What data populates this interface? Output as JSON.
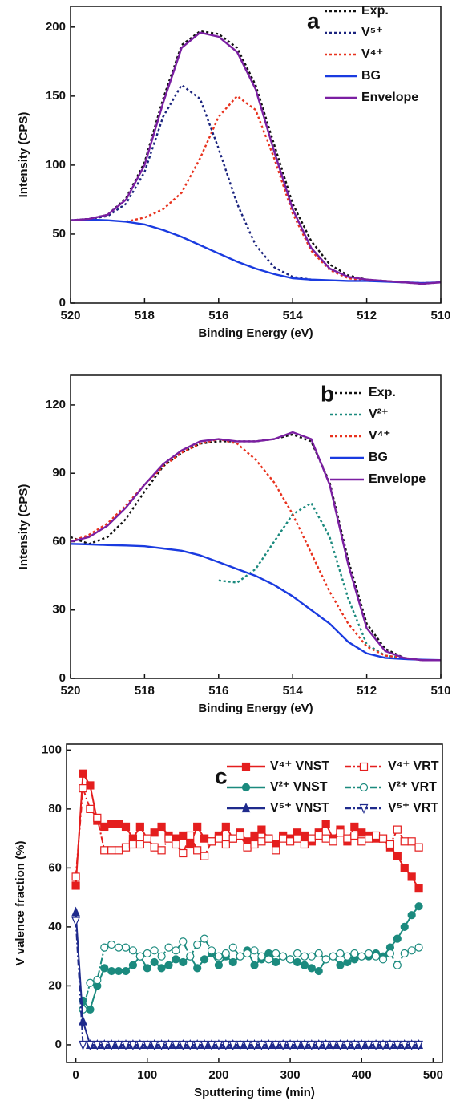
{
  "chart_data": [
    {
      "type": "line",
      "label": "a",
      "xlabel": "Binding Energy (eV)",
      "ylabel": "Intensity (CPS)",
      "x": [
        520,
        519.5,
        519,
        518.5,
        518,
        517.5,
        517,
        516.5,
        516,
        515.5,
        515,
        514.5,
        514,
        513.5,
        513,
        512.5,
        512,
        511.5,
        511,
        510.5,
        510
      ],
      "xlim": [
        520,
        510
      ],
      "xticks": [
        520,
        518,
        516,
        514,
        512,
        510
      ],
      "ylim": [
        0,
        215
      ],
      "yticks": [
        0,
        50,
        100,
        150,
        200
      ],
      "series": [
        {
          "name": "Exp.",
          "color": "#111111",
          "dash": "dot",
          "values": [
            60,
            61,
            64,
            76,
            102,
            148,
            187,
            197,
            195,
            185,
            158,
            115,
            72,
            45,
            28,
            20,
            17,
            16,
            15,
            14,
            15
          ]
        },
        {
          "name": "V⁵⁺",
          "color": "#1a237e",
          "dash": "dot",
          "values": [
            60,
            61,
            63,
            72,
            95,
            135,
            158,
            148,
            112,
            72,
            42,
            26,
            19,
            17,
            null,
            null,
            null,
            null,
            null,
            null,
            null
          ]
        },
        {
          "name": "V⁴⁺",
          "color": "#e8321e",
          "dash": "dot",
          "values": [
            null,
            null,
            null,
            59,
            62,
            68,
            80,
            105,
            135,
            150,
            140,
            105,
            65,
            38,
            24,
            18,
            16,
            16,
            15,
            14.5,
            15
          ]
        },
        {
          "name": "BG",
          "color": "#1a3be0",
          "dash": "solid",
          "values": [
            60,
            60.5,
            60,
            59,
            57,
            53,
            48,
            42,
            36,
            30,
            25,
            21,
            18,
            17,
            16.5,
            16,
            16,
            15.5,
            15,
            14.5,
            15
          ]
        },
        {
          "name": "Envelope",
          "color": "#7b1fa2",
          "dash": "solid",
          "values": [
            60,
            61,
            64,
            75,
            100,
            145,
            185,
            196,
            193,
            182,
            155,
            110,
            68,
            40,
            25,
            19,
            17,
            16,
            15,
            14,
            15
          ]
        }
      ]
    },
    {
      "type": "line",
      "label": "b",
      "xlabel": "Binding Energy (eV)",
      "ylabel": "Intensity (CPS)",
      "x": [
        520,
        519.5,
        519,
        518.5,
        518,
        517.5,
        517,
        516.5,
        516,
        515.5,
        515,
        514.5,
        514,
        513.5,
        513,
        512.5,
        512,
        511.5,
        511,
        510.5,
        510
      ],
      "xlim": [
        520,
        510
      ],
      "xticks": [
        520,
        518,
        516,
        514,
        512,
        510
      ],
      "ylim": [
        0,
        133
      ],
      "yticks": [
        0,
        30,
        60,
        90,
        120
      ],
      "series": [
        {
          "name": "Exp.",
          "color": "#111111",
          "dash": "dot",
          "values": [
            62,
            59,
            62,
            70,
            82,
            93,
            99,
            103,
            104,
            104,
            104,
            105,
            107,
            104,
            86,
            52,
            24,
            13,
            9,
            8,
            8
          ]
        },
        {
          "name": "V²⁺",
          "color": "#1b8a7e",
          "dash": "dot",
          "values": [
            null,
            null,
            null,
            null,
            null,
            null,
            null,
            null,
            43,
            42,
            48,
            60,
            72,
            77,
            62,
            35,
            15,
            10,
            9,
            8,
            8
          ]
        },
        {
          "name": "V⁴⁺",
          "color": "#e8321e",
          "dash": "dot",
          "values": [
            60,
            63,
            68,
            76,
            85,
            93,
            99,
            103,
            105,
            103,
            96,
            86,
            72,
            55,
            38,
            24,
            14,
            10,
            9,
            8,
            8
          ]
        },
        {
          "name": "BG",
          "color": "#1a3be0",
          "dash": "solid",
          "values": [
            59,
            58.8,
            58.5,
            58.3,
            58,
            57,
            56,
            54,
            51,
            48,
            45,
            41,
            36,
            30,
            24,
            16,
            11,
            9,
            8.5,
            8.2,
            8
          ]
        },
        {
          "name": "Envelope",
          "color": "#7b1fa2",
          "dash": "solid",
          "values": [
            60,
            62,
            67,
            75,
            85,
            94,
            100,
            104,
            105,
            104,
            104,
            105,
            108,
            105,
            85,
            50,
            22,
            12,
            9,
            8,
            8
          ]
        }
      ]
    },
    {
      "type": "line",
      "label": "c",
      "xlabel": "Sputtering time (min)",
      "ylabel": "V valence fraction (%)",
      "x": [
        0,
        10,
        20,
        30,
        40,
        50,
        60,
        70,
        80,
        90,
        100,
        110,
        120,
        130,
        140,
        150,
        160,
        170,
        180,
        190,
        200,
        210,
        220,
        230,
        240,
        250,
        260,
        270,
        280,
        290,
        300,
        310,
        320,
        330,
        340,
        350,
        360,
        370,
        380,
        390,
        400,
        410,
        420,
        430,
        440,
        450,
        460,
        470,
        480
      ],
      "xlim": [
        -13,
        513
      ],
      "xticks": [
        0,
        100,
        200,
        300,
        400,
        500
      ],
      "ylim": [
        -6,
        102
      ],
      "yticks": [
        0,
        20,
        40,
        60,
        80,
        100
      ],
      "series": [
        {
          "name": "V⁴⁺ VNST",
          "color": "#e41e1e",
          "dash": "solid",
          "marker": "square",
          "filled": true,
          "values": [
            54,
            92,
            88,
            76,
            74,
            75,
            75,
            74,
            70,
            74,
            70,
            72,
            74,
            71,
            70,
            71,
            68,
            74,
            70,
            69,
            71,
            74,
            70,
            72,
            69,
            71,
            73,
            70,
            68,
            71,
            70,
            72,
            71,
            69,
            72,
            75,
            70,
            73,
            69,
            74,
            72,
            71,
            70,
            70,
            67,
            64,
            60,
            57,
            53
          ]
        },
        {
          "name": "V⁴⁺ VRT",
          "color": "#e41e1e",
          "dash": "dash",
          "marker": "square",
          "filled": false,
          "values": [
            57,
            87,
            80,
            77,
            66,
            66,
            66,
            67,
            68,
            68,
            70,
            67,
            66,
            70,
            68,
            65,
            71,
            66,
            64,
            69,
            70,
            68,
            70,
            71,
            67,
            68,
            69,
            70,
            66,
            70,
            69,
            70,
            68,
            70,
            71,
            70,
            69,
            72,
            70,
            71,
            69,
            70,
            71,
            70,
            68,
            73,
            69,
            69,
            67
          ]
        },
        {
          "name": "V²⁺ VNST",
          "color": "#1b8a7e",
          "dash": "solid",
          "marker": "circle",
          "filled": true,
          "values": [
            null,
            15,
            12,
            20,
            26,
            25,
            25,
            25,
            27,
            30,
            26,
            28,
            26,
            27,
            29,
            28,
            30,
            26,
            29,
            31,
            27,
            30,
            28,
            30,
            32,
            27,
            29,
            31,
            28,
            30,
            29,
            28,
            27,
            26,
            25,
            29,
            30,
            27,
            28,
            29,
            30,
            30,
            31,
            30,
            33,
            36,
            40,
            44,
            47
          ]
        },
        {
          "name": "V²⁺ VRT",
          "color": "#1b8a7e",
          "dash": "dash",
          "marker": "circle",
          "filled": false,
          "values": [
            null,
            12,
            21,
            22,
            33,
            34,
            33,
            33,
            32,
            30,
            31,
            32,
            30,
            33,
            32,
            35,
            30,
            34,
            36,
            32,
            30,
            31,
            33,
            30,
            31,
            32,
            30,
            29,
            31,
            30,
            29,
            31,
            30,
            30,
            31,
            29,
            30,
            31,
            30,
            31,
            30,
            31,
            30,
            29,
            31,
            27,
            31,
            32,
            33
          ]
        },
        {
          "name": "V⁵⁺ VNST",
          "color": "#1f2a8c",
          "dash": "solid",
          "marker": "triangle",
          "filled": true,
          "values": [
            45,
            8,
            0,
            0,
            0,
            0,
            0,
            0,
            0,
            0,
            0,
            0,
            0,
            0,
            0,
            0,
            0,
            0,
            0,
            0,
            0,
            0,
            0,
            0,
            0,
            0,
            0,
            0,
            0,
            0,
            0,
            0,
            0,
            0,
            0,
            0,
            0,
            0,
            0,
            0,
            0,
            0,
            0,
            0,
            0,
            0,
            0,
            0,
            0
          ]
        },
        {
          "name": "V⁵⁺ VRT",
          "color": "#1f2a8c",
          "dash": "dash",
          "marker": "triangle-down",
          "filled": false,
          "values": [
            42,
            0,
            0,
            0,
            0,
            0,
            0,
            0,
            0,
            0,
            0,
            0,
            0,
            0,
            0,
            0,
            0,
            0,
            0,
            0,
            0,
            0,
            0,
            0,
            0,
            0,
            0,
            0,
            0,
            0,
            0,
            0,
            0,
            0,
            0,
            0,
            0,
            0,
            0,
            0,
            0,
            0,
            0,
            0,
            0,
            0,
            0,
            0,
            0
          ]
        }
      ]
    }
  ]
}
